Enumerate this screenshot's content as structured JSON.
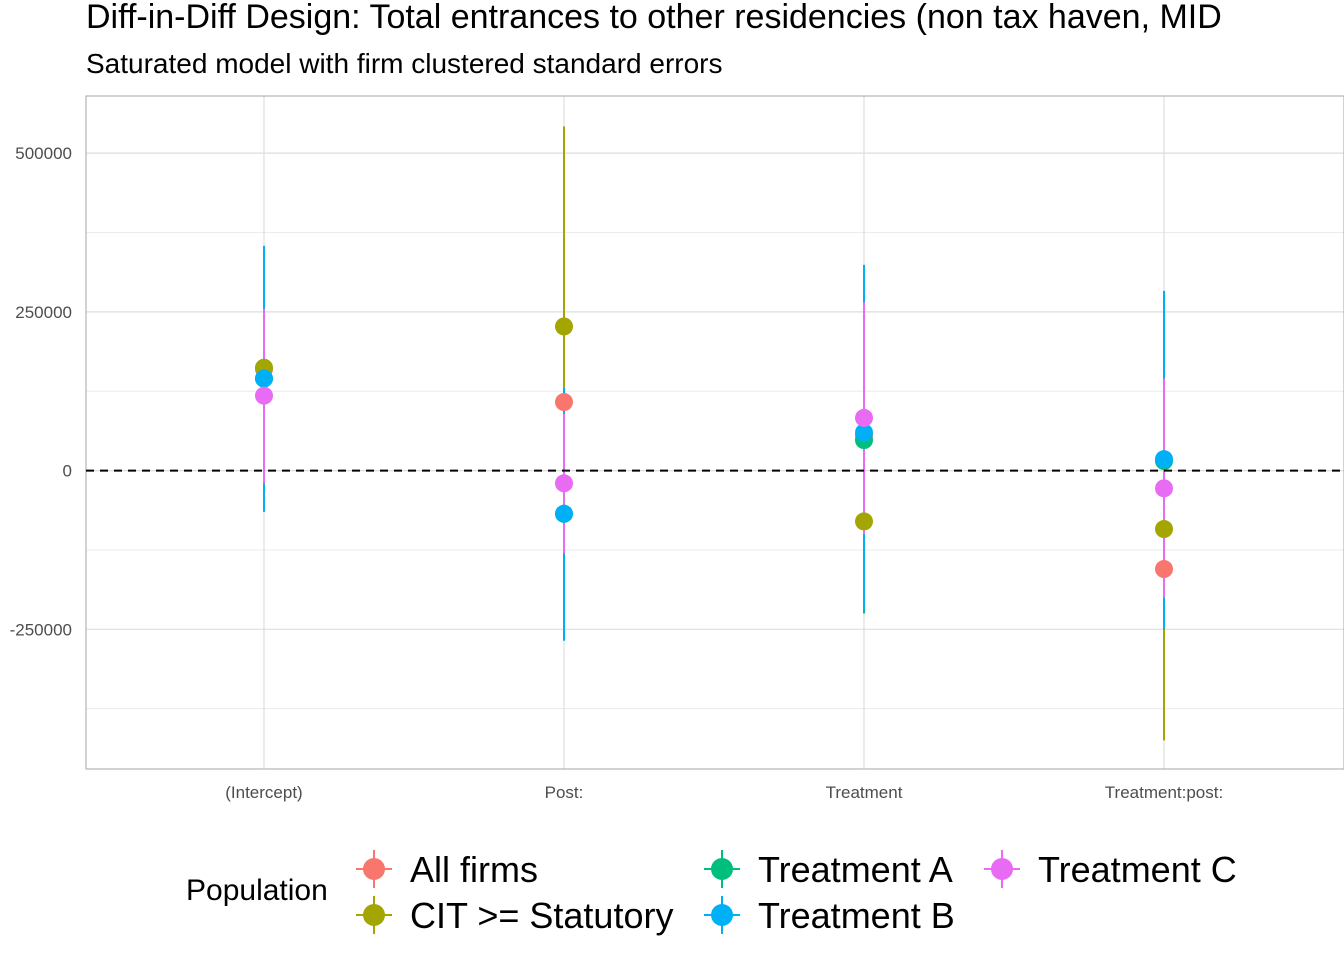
{
  "title": "Diff-in-Diff Design: Total entrances to other residencies (non tax haven, MID",
  "subtitle": "Saturated model with firm clustered standard errors",
  "chart_data": {
    "type": "scatter",
    "title": "Diff-in-Diff Design: Total entrances to other residencies (non tax haven, MID",
    "subtitle": "Saturated model with firm clustered standard errors",
    "xlabel": "",
    "ylabel": "",
    "categories": [
      "(Intercept)",
      "Post:",
      "Treatment",
      "Treatment:post:"
    ],
    "y_ticks": [
      -250000,
      0,
      250000,
      500000
    ],
    "y_tick_labels": [
      "-250000",
      "0",
      "250000",
      "500000"
    ],
    "ylim": [
      -470000,
      590000
    ],
    "grid": true,
    "reference_line": 0,
    "legend": {
      "title": "Population",
      "position": "bottom"
    },
    "series": [
      {
        "name": "All firms",
        "color": "#F8766D",
        "values": [
          160000,
          108000,
          55000,
          -155000
        ],
        "lower": [
          65000,
          -30000,
          -10000,
          -420000
        ],
        "upper": [
          255000,
          250000,
          120000,
          110000
        ]
      },
      {
        "name": "CIT >= Statutory",
        "color": "#A3A500",
        "values": [
          162000,
          227000,
          -80000,
          -92000
        ],
        "lower": [
          68000,
          -30000,
          -195000,
          -425000
        ],
        "upper": [
          256000,
          542000,
          35000,
          240000
        ]
      },
      {
        "name": "Treatment A",
        "color": "#00BF7D",
        "values": [
          145000,
          -68000,
          48000,
          15000
        ],
        "lower": [
          -60000,
          -265000,
          -225000,
          -250000
        ],
        "upper": [
          350000,
          130000,
          320000,
          280000
        ]
      },
      {
        "name": "Treatment B",
        "color": "#00B0F6",
        "values": [
          145000,
          -68000,
          60000,
          18000
        ],
        "lower": [
          -65000,
          -268000,
          -220000,
          -248000
        ],
        "upper": [
          354000,
          130000,
          324000,
          283000
        ]
      },
      {
        "name": "Treatment C",
        "color": "#E76BF3",
        "values": [
          118000,
          -20000,
          83000,
          -28000
        ],
        "lower": [
          -20000,
          -130000,
          -100000,
          -200000
        ],
        "upper": [
          255000,
          90000,
          265000,
          145000
        ]
      }
    ]
  },
  "legend_labels": [
    "All firms",
    "CIT >= Statutory",
    "Treatment A",
    "Treatment B",
    "Treatment C"
  ]
}
